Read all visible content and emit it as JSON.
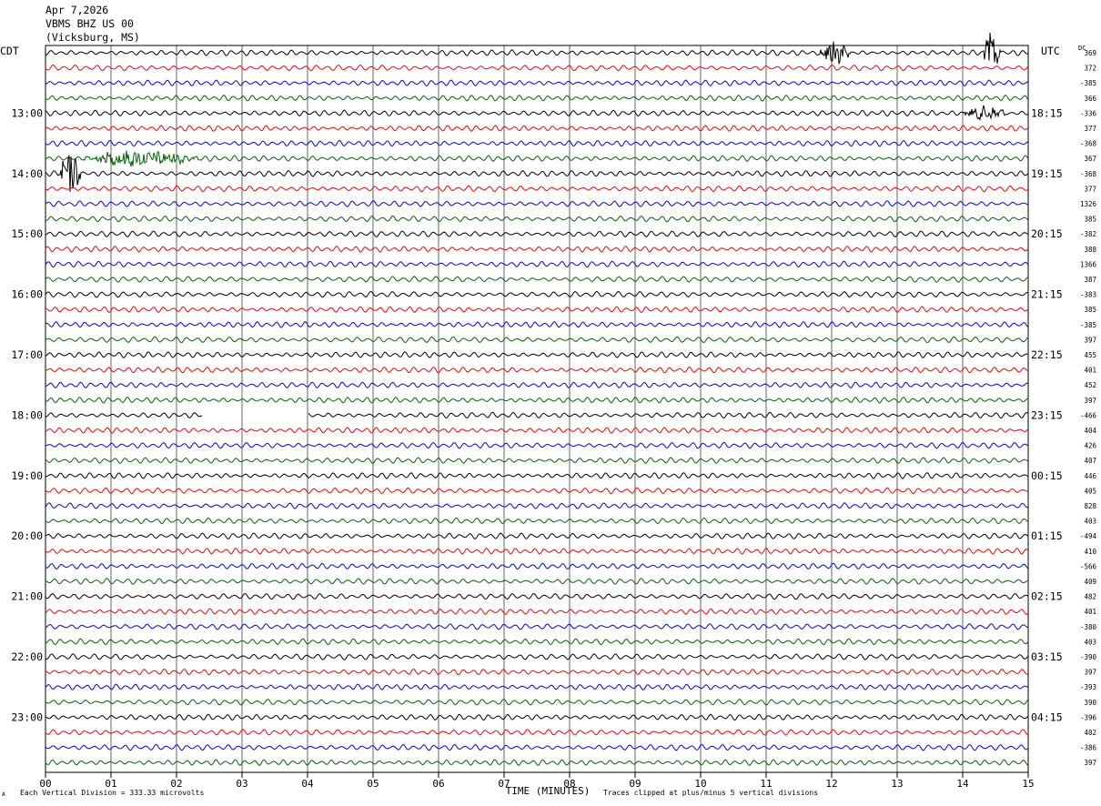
{
  "header": {
    "date": "Apr 7,2026",
    "station": "VBMS BHZ US 00",
    "location": "(Vicksburg, MS)"
  },
  "left_zone_label": "CDT",
  "right_zone_label": "UTC",
  "dc_label": "DC",
  "footer": {
    "scale_note": "Each Vertical Division = 333.33 microvolts",
    "clip_note": "Traces clipped at plus/minus 5 vertical divisions",
    "corner_mark": "A"
  },
  "chart_data": {
    "type": "line",
    "title": "",
    "xlabel": "TIME (MINUTES)",
    "x_ticks": [
      "00",
      "01",
      "02",
      "03",
      "04",
      "05",
      "06",
      "07",
      "08",
      "09",
      "10",
      "11",
      "12",
      "13",
      "14",
      "15"
    ],
    "xlim": [
      0,
      15
    ],
    "grid": true,
    "trace_colors": [
      "#000000",
      "#ff0000",
      "#0000ff",
      "#006400"
    ],
    "left_hour_labels": [
      "13:00",
      "14:00",
      "15:00",
      "16:00",
      "17:00",
      "18:00",
      "19:00",
      "20:00",
      "21:00",
      "22:00",
      "23:00"
    ],
    "right_hour_labels": [
      "18:15",
      "19:15",
      "20:15",
      "21:15",
      "22:15",
      "23:15",
      "00:15",
      "01:15",
      "02:15",
      "03:15",
      "04:15"
    ],
    "dc_offsets": [
      "369",
      "372",
      "-385",
      "366",
      "-336",
      "377",
      "-368",
      "367",
      "-368",
      "377",
      "1326",
      "385",
      "-382",
      "388",
      "1366",
      "387",
      "-383",
      "385",
      "-385",
      "397",
      "455",
      "401",
      "452",
      "397",
      "-466",
      "404",
      "426",
      "407",
      "446",
      "405",
      "828",
      "403",
      "-494",
      "410",
      "-566",
      "409",
      "482",
      "401",
      "-380",
      "403",
      "-390",
      "397",
      "-393",
      "390",
      "-396",
      "402",
      "-386",
      "397"
    ],
    "events": [
      {
        "trace": 0,
        "start_min": 11.8,
        "end_min": 12.5,
        "amplitude": "large"
      },
      {
        "trace": 0,
        "start_min": 14.3,
        "end_min": 14.7,
        "amplitude": "clipped"
      },
      {
        "trace": 4,
        "start_min": 14.0,
        "end_min": 15.0,
        "amplitude": "moderate"
      },
      {
        "trace": 8,
        "start_min": 0.2,
        "end_min": 0.7,
        "amplitude": "clipped"
      },
      {
        "trace": 7,
        "start_min": 0.5,
        "end_min": 3.2,
        "amplitude": "moderate"
      }
    ],
    "data_gaps": [
      {
        "trace": 24,
        "start_min": 2.4,
        "end_min": 4.0
      }
    ]
  }
}
